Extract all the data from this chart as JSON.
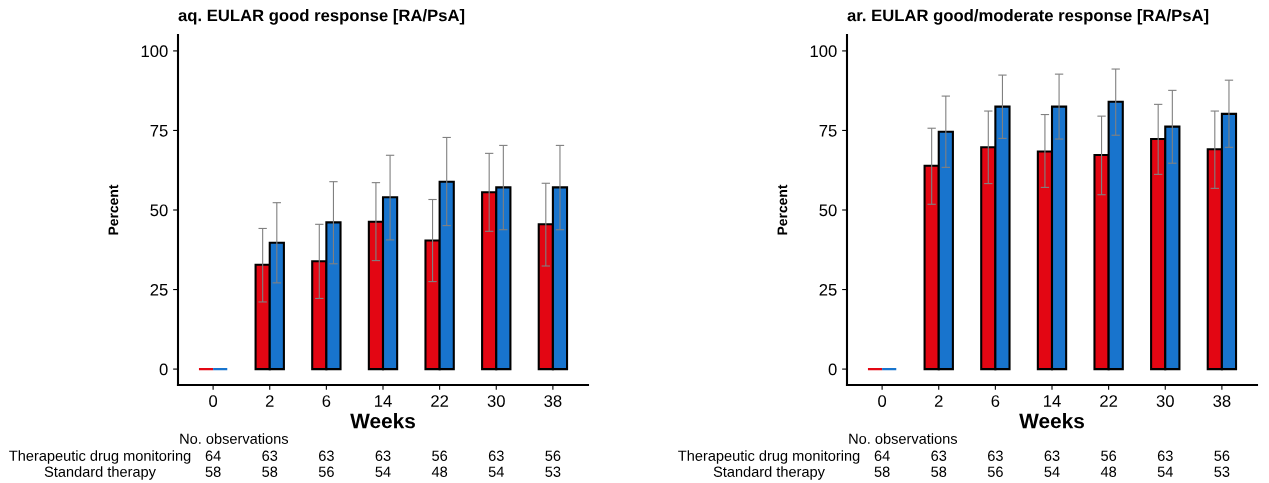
{
  "chart_data": [
    {
      "type": "bar",
      "title": "aq. EULAR good response [RA/PsA]",
      "xlabel": "Weeks",
      "ylabel": "Percent",
      "categories": [
        "0",
        "2",
        "6",
        "14",
        "22",
        "30",
        "38"
      ],
      "ylim": [
        -5,
        105
      ],
      "yticks": [
        0,
        25,
        50,
        75,
        100
      ],
      "grid": false,
      "series": [
        {
          "color": "#e30613",
          "values": [
            0,
            32.8,
            33.9,
            46.3,
            40.4,
            55.6,
            45.5
          ],
          "errors": [
            null,
            [
              21.1,
              44.2
            ],
            [
              22.2,
              45.5
            ],
            [
              34.1,
              58.6
            ],
            [
              27.5,
              53.3
            ],
            [
              43.3,
              67.8
            ],
            [
              32.4,
              58.4
            ]
          ]
        },
        {
          "color": "#1874cd",
          "values": [
            0,
            39.7,
            46.1,
            54.0,
            58.9,
            57.1,
            57.1
          ],
          "errors": [
            null,
            [
              27.1,
              52.3
            ],
            [
              33.1,
              58.9
            ],
            [
              40.6,
              67.2
            ],
            [
              45.1,
              72.8
            ],
            [
              43.8,
              70.3
            ],
            [
              43.8,
              70.3
            ]
          ]
        }
      ],
      "annotations": [
        "No. observations",
        "Therapeutic drug monitoring",
        "64",
        "63",
        "63",
        "63",
        "56",
        "63",
        "56",
        "Standard therapy",
        "58",
        "58",
        "56",
        "54",
        "48",
        "54",
        "53"
      ]
    },
    {
      "type": "bar",
      "title": "ar. EULAR good/moderate response [RA/PsA]",
      "xlabel": "Weeks",
      "ylabel": "Percent",
      "categories": [
        "0",
        "2",
        "6",
        "14",
        "22",
        "30",
        "38"
      ],
      "ylim": [
        -5,
        105
      ],
      "yticks": [
        0,
        25,
        50,
        75,
        100
      ],
      "grid": false,
      "series": [
        {
          "color": "#e30613",
          "values": [
            0,
            63.9,
            69.7,
            68.4,
            67.3,
            72.3,
            69.1
          ],
          "errors": [
            null,
            [
              51.8,
              75.7
            ],
            [
              58.3,
              81.1
            ],
            [
              57.1,
              80.0
            ],
            [
              54.8,
              79.5
            ],
            [
              61.2,
              83.2
            ],
            [
              56.8,
              81.1
            ]
          ]
        },
        {
          "color": "#1874cd",
          "values": [
            0,
            74.6,
            82.5,
            82.5,
            84.0,
            76.2,
            80.2
          ],
          "errors": [
            null,
            [
              63.4,
              85.8
            ],
            [
              72.5,
              92.4
            ],
            [
              72.3,
              92.7
            ],
            [
              73.5,
              94.3
            ],
            [
              64.7,
              87.6
            ],
            [
              69.7,
              90.8
            ]
          ]
        }
      ],
      "annotations": [
        "No. observations",
        "Therapeutic drug monitoring",
        "64",
        "63",
        "63",
        "63",
        "56",
        "63",
        "56",
        "Standard therapy",
        "58",
        "58",
        "56",
        "54",
        "48",
        "54",
        "53"
      ]
    }
  ]
}
